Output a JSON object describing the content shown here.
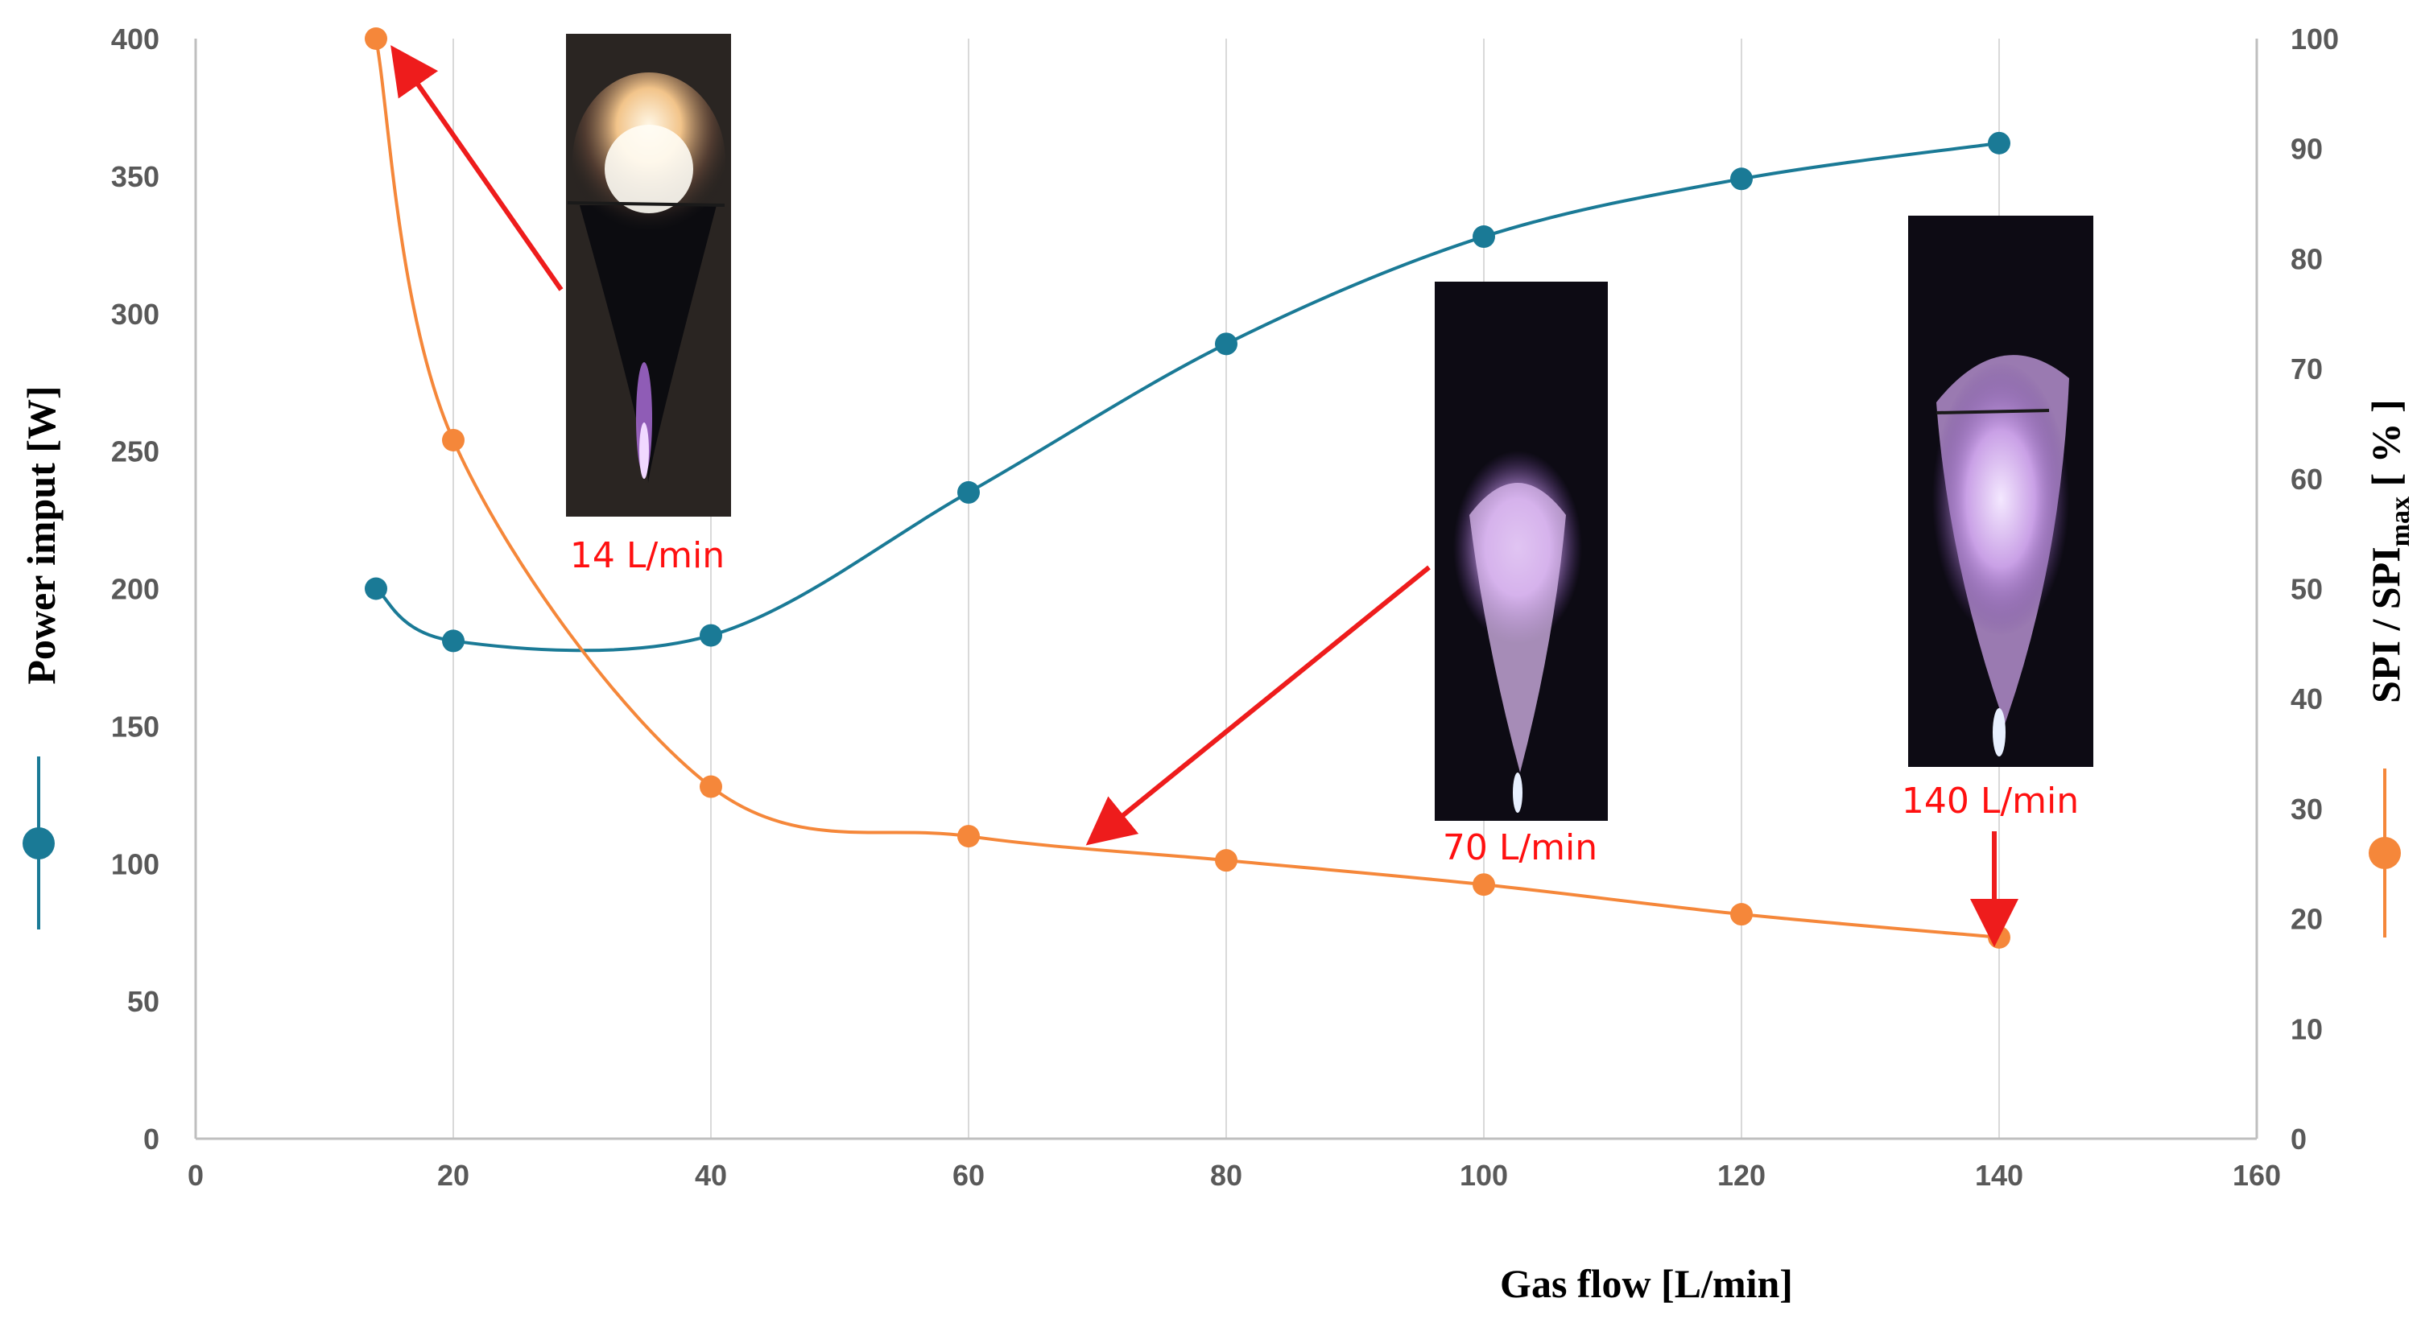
{
  "chart_data": {
    "type": "line",
    "xlabel": "Gas flow [L/min]",
    "ylabel_left": "Power imput [W]",
    "ylabel_right_main": "SPI / SPI",
    "ylabel_right_sub": "max",
    "ylabel_right_unit": " [ % ]",
    "xlim": [
      0,
      160
    ],
    "x_ticks": [
      0,
      20,
      40,
      60,
      80,
      100,
      120,
      140,
      160
    ],
    "ylim_left": [
      0,
      400
    ],
    "y_left_ticks": [
      0,
      50,
      100,
      150,
      200,
      250,
      300,
      350,
      400
    ],
    "ylim_right": [
      0,
      100
    ],
    "y_right_ticks": [
      0,
      10,
      20,
      30,
      40,
      50,
      60,
      70,
      80,
      90,
      100
    ],
    "grid": "vertical",
    "series": [
      {
        "name": "",
        "axis": "left",
        "color": "#1a7a96",
        "x": [
          14,
          20,
          40,
          60,
          80,
          100,
          120,
          140
        ],
        "values": [
          200,
          181,
          183,
          235,
          289,
          328,
          349,
          362
        ]
      },
      {
        "name": "",
        "axis": "right",
        "color": "#f5873a",
        "x": [
          14,
          20,
          40,
          60,
          80,
          100,
          120,
          140
        ],
        "values": [
          100,
          63.5,
          32,
          27.5,
          25.3,
          23.1,
          20.4,
          18.3
        ]
      }
    ],
    "annotations": [
      {
        "label": "14 L/min",
        "color": "#ff1010"
      },
      {
        "label": "70 L/min",
        "color": "#ff1010"
      },
      {
        "label": "140 L/min",
        "color": "#ff1010"
      }
    ]
  }
}
